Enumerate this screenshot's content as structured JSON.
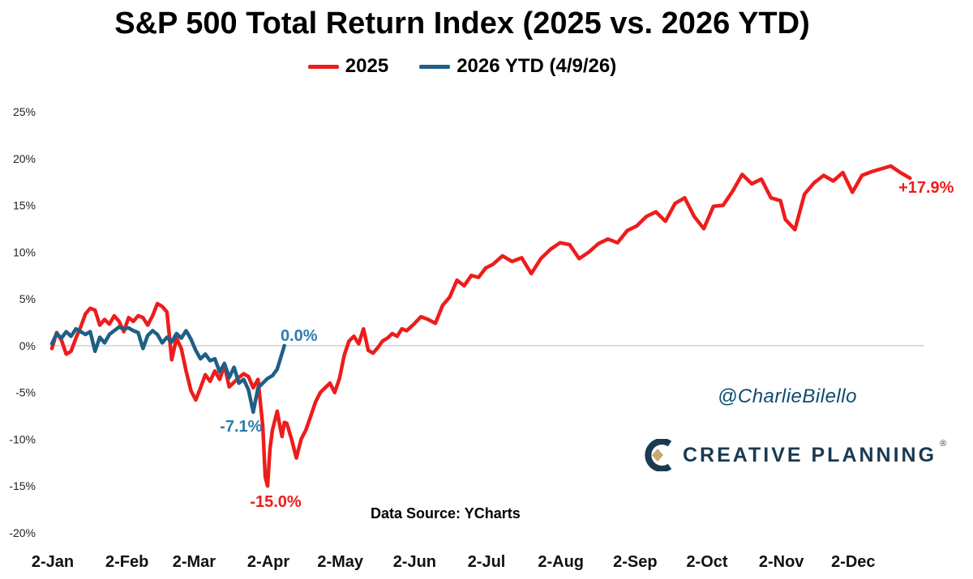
{
  "page": {
    "source_note": "Data Source: YCharts",
    "handle": "@CharlieBilello",
    "brand": "CREATIVE PLANNING",
    "brand_mark": "®"
  },
  "colors": {
    "series_2025": "#ee1c1c",
    "series_2026": "#1f5f86",
    "label_2026": "#2f7bb0",
    "brand": "#1a3a52",
    "brand_accent": "#c9a96e"
  },
  "chart_data": {
    "type": "line",
    "title": "S&P 500 Total Return Index (2025 vs. 2026 YTD)",
    "xlabel": "",
    "ylabel": "",
    "x_tick_labels": [
      "2-Jan",
      "2-Feb",
      "2-Mar",
      "2-Apr",
      "2-May",
      "2-Jun",
      "2-Jul",
      "2-Aug",
      "2-Sep",
      "2-Oct",
      "2-Nov",
      "2-Dec"
    ],
    "x_ticks_day_of_year": [
      2,
      33,
      61,
      92,
      122,
      153,
      183,
      214,
      245,
      275,
      306,
      336
    ],
    "x_range": [
      2,
      366
    ],
    "y_tick_labels": [
      "25%",
      "20%",
      "15%",
      "10%",
      "5%",
      "0%",
      "-5%",
      "-10%",
      "-15%",
      "-20%"
    ],
    "y_ticks": [
      25,
      20,
      15,
      10,
      5,
      0,
      -5,
      -10,
      -15,
      -20
    ],
    "ylim": [
      -20,
      25
    ],
    "grid": false,
    "zero_line": true,
    "legend_position": "top-center",
    "series": [
      {
        "name": "2025",
        "x": [
          2,
          4,
          6,
          8,
          10,
          12,
          14,
          16,
          18,
          20,
          22,
          24,
          26,
          28,
          30,
          32,
          34,
          36,
          38,
          40,
          42,
          44,
          46,
          48,
          50,
          52,
          54,
          56,
          58,
          60,
          62,
          64,
          66,
          68,
          70,
          72,
          74,
          76,
          78,
          80,
          82,
          84,
          86,
          88,
          90,
          91,
          92,
          93,
          94,
          96,
          97,
          98,
          99,
          100,
          102,
          104,
          106,
          108,
          110,
          112,
          114,
          116,
          118,
          120,
          122,
          124,
          126,
          128,
          130,
          132,
          134,
          136,
          138,
          140,
          142,
          144,
          146,
          148,
          150,
          153,
          156,
          159,
          162,
          165,
          168,
          171,
          174,
          177,
          180,
          183,
          186,
          190,
          194,
          198,
          202,
          206,
          210,
          214,
          218,
          222,
          226,
          230,
          234,
          238,
          242,
          246,
          250,
          254,
          258,
          262,
          266,
          270,
          274,
          278,
          282,
          286,
          290,
          294,
          298,
          302,
          306,
          308,
          312,
          316,
          320,
          324,
          328,
          332,
          336,
          340,
          344,
          348,
          352,
          356,
          360
        ],
        "values": [
          -0.3,
          1.4,
          0.6,
          -0.9,
          -0.6,
          0.8,
          2.0,
          3.4,
          4.0,
          3.8,
          2.2,
          2.8,
          2.3,
          3.2,
          2.6,
          1.5,
          3.0,
          2.6,
          3.2,
          3.0,
          2.2,
          3.2,
          4.5,
          4.2,
          3.6,
          -1.5,
          0.8,
          -0.3,
          -2.7,
          -4.8,
          -5.8,
          -4.5,
          -3.1,
          -3.8,
          -2.7,
          -3.6,
          -2.1,
          -4.4,
          -3.9,
          -3.4,
          -3.0,
          -3.3,
          -4.5,
          -3.6,
          -8.6,
          -14.0,
          -15.0,
          -11.0,
          -9.0,
          -7.0,
          -8.4,
          -9.7,
          -8.2,
          -8.3,
          -10.0,
          -12.0,
          -10.0,
          -9.0,
          -7.5,
          -6.0,
          -5.0,
          -4.5,
          -4.0,
          -5.0,
          -3.5,
          -1.0,
          0.5,
          1.0,
          0.2,
          1.8,
          -0.5,
          -0.8,
          -0.2,
          0.5,
          0.8,
          1.3,
          1.0,
          1.8,
          1.6,
          2.3,
          3.1,
          2.8,
          2.4,
          4.3,
          5.2,
          7.0,
          6.4,
          7.5,
          7.3,
          8.3,
          8.7,
          9.6,
          9.0,
          9.4,
          7.7,
          9.3,
          10.3,
          11.0,
          10.8,
          9.3,
          10.0,
          10.9,
          11.4,
          11.0,
          12.3,
          12.8,
          13.8,
          14.3,
          13.3,
          15.2,
          15.8,
          13.8,
          12.5,
          14.9,
          15.0,
          16.5,
          18.3,
          17.3,
          17.8,
          15.8,
          15.5,
          13.5,
          12.4,
          16.2,
          17.4,
          18.2,
          17.6,
          18.5,
          16.4,
          18.2,
          18.6,
          18.9,
          19.2,
          18.5,
          17.9
        ]
      },
      {
        "name": "2026 YTD (4/9/26)",
        "x": [
          2,
          4,
          6,
          8,
          10,
          12,
          14,
          16,
          18,
          20,
          22,
          24,
          26,
          28,
          30,
          32,
          34,
          36,
          38,
          40,
          42,
          44,
          46,
          48,
          50,
          52,
          54,
          56,
          58,
          60,
          62,
          64,
          66,
          68,
          70,
          72,
          74,
          76,
          78,
          80,
          82,
          84,
          86,
          88,
          90,
          92,
          94,
          96,
          99
        ],
        "values": [
          0.2,
          1.3,
          0.8,
          1.5,
          1.0,
          1.8,
          1.5,
          1.2,
          1.5,
          -0.6,
          0.9,
          0.3,
          1.2,
          1.6,
          2.0,
          1.8,
          1.9,
          1.6,
          1.4,
          -0.3,
          1.1,
          1.6,
          1.2,
          0.3,
          0.9,
          0.4,
          1.3,
          0.8,
          1.6,
          0.7,
          -0.5,
          -1.4,
          -0.9,
          -1.6,
          -1.4,
          -2.8,
          -1.9,
          -3.4,
          -2.3,
          -4.0,
          -3.6,
          -4.7,
          -7.1,
          -4.5,
          -4.0,
          -3.5,
          -3.2,
          -2.5,
          0.0
        ]
      }
    ],
    "annotations": [
      {
        "text": "+17.9%",
        "series": "2025",
        "x": 360,
        "y": 17.9
      },
      {
        "text": "-15.0%",
        "series": "2025",
        "x": 92,
        "y": -15.0
      },
      {
        "text": "-7.1%",
        "series": "2026 YTD (4/9/26)",
        "x": 86,
        "y": -7.1
      },
      {
        "text": "0.0%",
        "series": "2026 YTD (4/9/26)",
        "x": 99,
        "y": 0.0
      }
    ]
  }
}
